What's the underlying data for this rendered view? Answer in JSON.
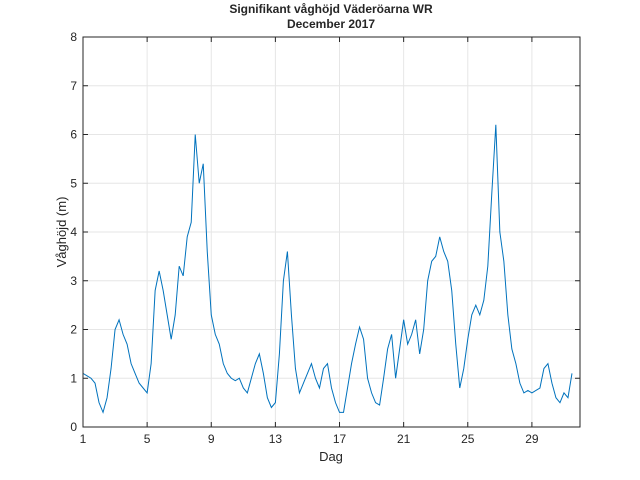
{
  "chart_data": {
    "type": "line",
    "title": "Signifikant våghöjd Väderöarna WR",
    "subtitle": "December 2017",
    "x_label": "Dag",
    "y_label": "Våghöjd (m)",
    "xlim": [
      1,
      32
    ],
    "xticks": [
      1,
      5,
      9,
      13,
      17,
      21,
      25,
      29
    ],
    "ylim": [
      0,
      8
    ],
    "yticks": [
      0,
      1,
      2,
      3,
      4,
      5,
      6,
      7,
      8
    ],
    "grid": true,
    "series": [
      {
        "color": "#0072bd",
        "x": [
          1,
          1.25,
          1.5,
          1.75,
          2,
          2.25,
          2.5,
          2.75,
          3,
          3.25,
          3.5,
          3.75,
          4,
          4.25,
          4.5,
          4.75,
          5,
          5.25,
          5.5,
          5.75,
          6,
          6.25,
          6.5,
          6.75,
          7,
          7.25,
          7.5,
          7.75,
          8,
          8.25,
          8.5,
          8.75,
          9,
          9.25,
          9.5,
          9.75,
          10,
          10.25,
          10.5,
          10.75,
          11,
          11.25,
          11.5,
          11.75,
          12,
          12.25,
          12.5,
          12.75,
          13,
          13.25,
          13.5,
          13.75,
          14,
          14.25,
          14.5,
          14.75,
          15,
          15.25,
          15.5,
          15.75,
          16,
          16.25,
          16.5,
          16.75,
          17,
          17.25,
          17.5,
          17.75,
          18,
          18.25,
          18.5,
          18.75,
          19,
          19.25,
          19.5,
          19.75,
          20,
          20.25,
          20.5,
          20.75,
          21,
          21.25,
          21.5,
          21.75,
          22,
          22.25,
          22.5,
          22.75,
          23,
          23.25,
          23.5,
          23.75,
          24,
          24.25,
          24.5,
          24.75,
          25,
          25.25,
          25.5,
          25.75,
          26,
          26.25,
          26.5,
          26.75,
          27,
          27.25,
          27.5,
          27.75,
          28,
          28.25,
          28.5,
          28.75,
          29,
          29.25,
          29.5,
          29.75,
          30,
          30.25,
          30.5,
          30.75,
          31,
          31.25,
          31.5
        ],
        "values": [
          1.1,
          1.05,
          1.0,
          0.9,
          0.5,
          0.3,
          0.6,
          1.2,
          2.0,
          2.2,
          1.9,
          1.7,
          1.3,
          1.1,
          0.9,
          0.8,
          0.7,
          1.3,
          2.8,
          3.2,
          2.8,
          2.3,
          1.8,
          2.3,
          3.3,
          3.1,
          3.9,
          4.2,
          6.0,
          5.0,
          5.4,
          3.6,
          2.3,
          1.9,
          1.7,
          1.3,
          1.1,
          1.0,
          0.95,
          1.0,
          0.8,
          0.7,
          1.0,
          1.3,
          1.5,
          1.1,
          0.6,
          0.4,
          0.5,
          1.5,
          3.0,
          3.6,
          2.3,
          1.2,
          0.7,
          0.9,
          1.1,
          1.3,
          1.0,
          0.8,
          1.2,
          1.3,
          0.8,
          0.5,
          0.3,
          0.3,
          0.8,
          1.3,
          1.7,
          2.05,
          1.8,
          1.0,
          0.7,
          0.5,
          0.45,
          1.0,
          1.6,
          1.9,
          1.0,
          1.6,
          2.2,
          1.7,
          1.9,
          2.2,
          1.5,
          2.0,
          3.0,
          3.4,
          3.5,
          3.9,
          3.6,
          3.4,
          2.8,
          1.7,
          0.8,
          1.2,
          1.8,
          2.3,
          2.5,
          2.3,
          2.6,
          3.3,
          4.8,
          6.2,
          4.0,
          3.4,
          2.3,
          1.6,
          1.3,
          0.9,
          0.7,
          0.75,
          0.7,
          0.75,
          0.8,
          1.2,
          1.3,
          0.9,
          0.6,
          0.5,
          0.7,
          0.6,
          1.1
        ]
      }
    ]
  }
}
